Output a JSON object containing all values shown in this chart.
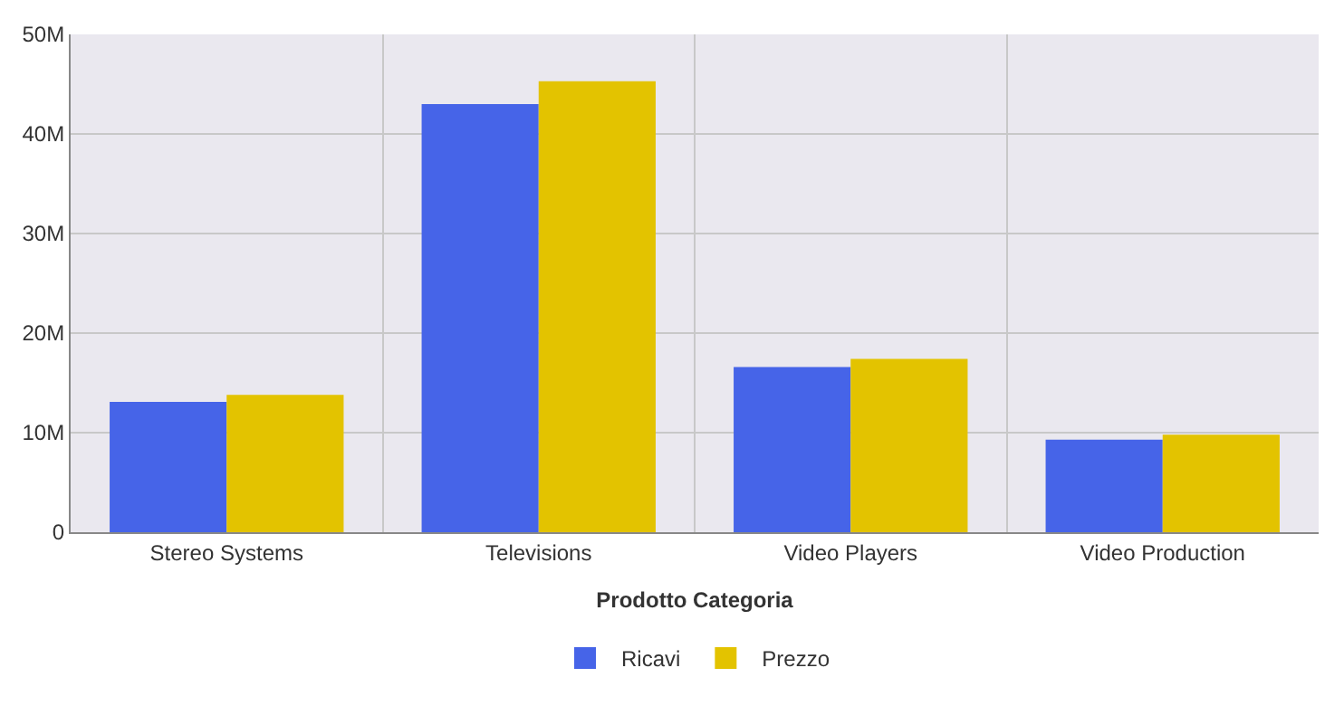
{
  "chart_data": {
    "type": "bar",
    "xlabel": "Prodotto Categoria",
    "categories": [
      "Stereo Systems",
      "Televisions",
      "Video Players",
      "Video Production"
    ],
    "series": [
      {
        "name": "Ricavi",
        "color": "#4664e8",
        "values": [
          13.1,
          43.0,
          16.6,
          9.3
        ]
      },
      {
        "name": "Prezzo",
        "color": "#e3c300",
        "values": [
          13.8,
          45.3,
          17.4,
          9.8
        ]
      }
    ],
    "ylim": [
      0,
      50
    ],
    "yticks": [
      {
        "value": 0,
        "label": "0"
      },
      {
        "value": 10,
        "label": "10M"
      },
      {
        "value": 20,
        "label": "20M"
      },
      {
        "value": 30,
        "label": "30M"
      },
      {
        "value": 40,
        "label": "40M"
      },
      {
        "value": 50,
        "label": "50M"
      }
    ],
    "grid": true,
    "legend": "bottom"
  }
}
